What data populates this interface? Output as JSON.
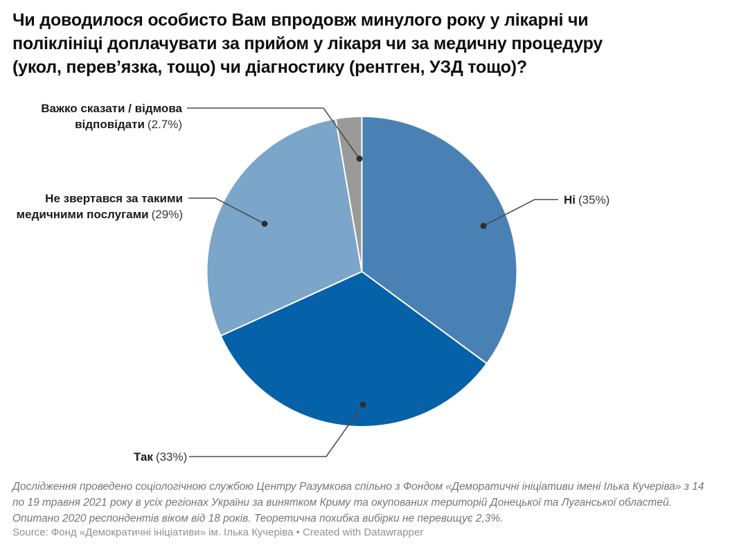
{
  "header": {
    "title": "Чи доводилося особисто Вам впродовж минулого року у лікарні чи\nполіклініці доплачувати за прийом у лікаря чи за медичну процедуру\n(укол, перев’язка, тощо) чи діагностику (рентген, УЗД тощо)?"
  },
  "chart_data": {
    "type": "pie",
    "title": "Чи доводилося особисто Вам впродовж минулого року у лікарні чи поліклініці доплачувати за прийом у лікаря чи за медичну процедуру (укол, перев’язка, тощо) чи діагностику (рентген, УЗД тощо)?",
    "units": "%",
    "start_angle_deg": 0,
    "direction": "clockwise",
    "legend_position": "outside-callouts",
    "slices": [
      {
        "key": "ni",
        "label": "Ні",
        "value": 35,
        "display": "Ні (35%)",
        "color": "#4A81B4"
      },
      {
        "key": "tak",
        "label": "Так",
        "value": 33,
        "display": "Так (33%)",
        "color": "#0561A8"
      },
      {
        "key": "ne_zvertavsia",
        "label": "Не звертався за такими медичними послугами",
        "value": 29,
        "display": "Не звертався за такими медичними послугами (29%)",
        "color": "#7BA5C9"
      },
      {
        "key": "vazhko",
        "label": "Важко сказати / відмова відповідати",
        "value": 2.7,
        "display": "Важко сказати / відмова відповідати (2.7%)",
        "color": "#9A9A98"
      }
    ]
  },
  "callouts": {
    "ni": {
      "name": "Ні",
      "pct": "(35%)"
    },
    "tak": {
      "name": "Так",
      "pct": "(33%)"
    },
    "ne_zvertavsia": {
      "name": "Не звертався за такими медичними послугами",
      "pct": "(29%)"
    },
    "vazhko": {
      "name": "Важко сказати / відмова відповідати",
      "pct": "(2.7%)"
    }
  },
  "footer": {
    "notes": "Дослідження проведено соціологічною службою Центру Разумкова спільно з Фондом «Деморатичні ініціативи імені Ілька Кучеріва» з 14\nпо 19 травня 2021 року в усіх регіонах України за винятком Криму та окупованих територій Донецької та Луганської областей.\nОпитано 2020 респондентів віком від 18 років. Теоретична похибка вибірки не перевищує 2,3%.",
    "source_label": "Source:",
    "source": "Фонд «Демократичні ініціативи» ім. Ілька Кучеріва",
    "separator": "•",
    "credit": "Created with Datawrapper"
  },
  "style": {
    "background": "#FFFFFF",
    "slice_border": "#FFFFFF",
    "leader_line": "#4D4D4D",
    "dot": "#2D2D2D",
    "title_color": "#0E0E0E",
    "note_color": "#757575",
    "source_color": "#919191"
  }
}
